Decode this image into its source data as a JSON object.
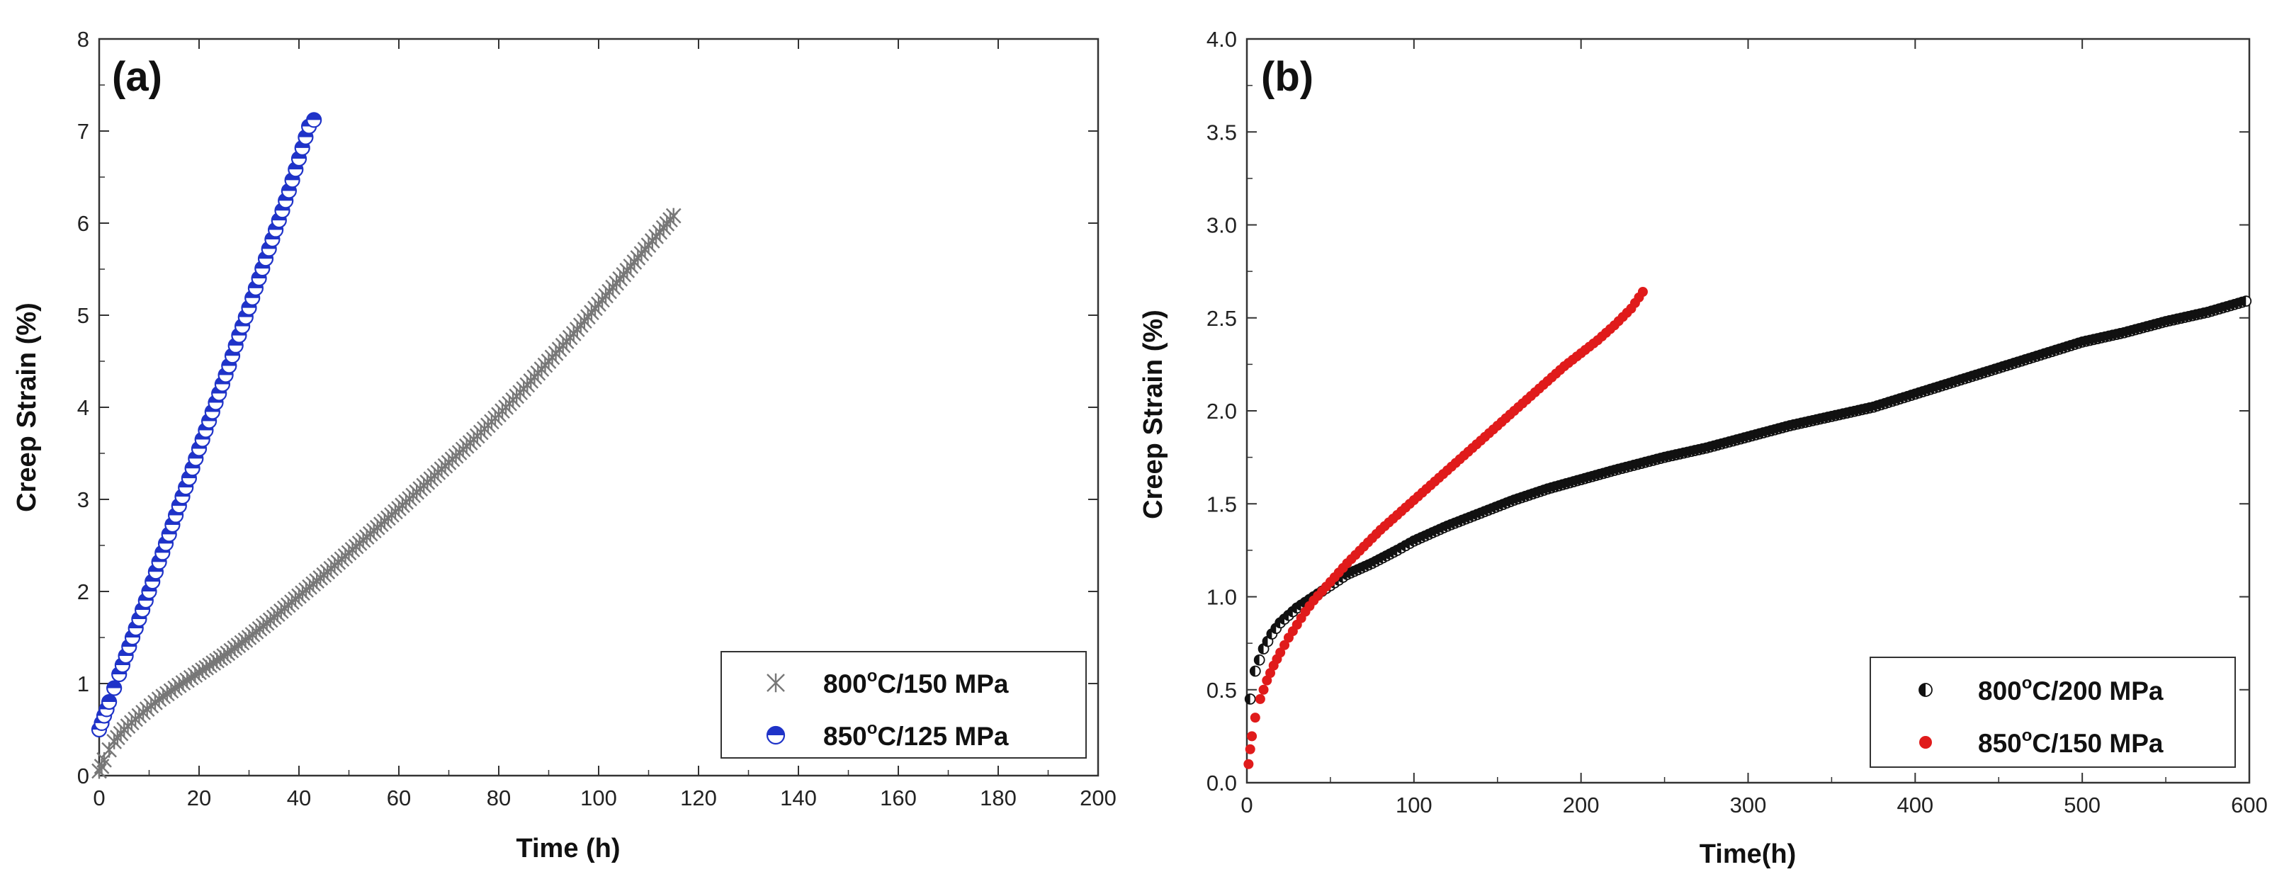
{
  "chart_data": [
    {
      "panel_label": "(a)",
      "type": "scatter",
      "xlabel": "Time (h)",
      "ylabel": "Creep Strain (%)",
      "xlim": [
        0,
        200
      ],
      "ylim": [
        0,
        8
      ],
      "xticks": [
        0,
        20,
        40,
        60,
        80,
        100,
        120,
        140,
        160,
        180,
        200
      ],
      "yticks": [
        0,
        1,
        2,
        3,
        4,
        5,
        6,
        7,
        8
      ],
      "legend_position": "bottom-right",
      "series": [
        {
          "name": "800°C/150 MPa",
          "label_pre": "800",
          "label_sup": "o",
          "label_post": "C/150 MPa",
          "marker": "star",
          "color": "#777777",
          "points": [
            [
              0,
              0.05
            ],
            [
              0.5,
              0.1
            ],
            [
              1,
              0.17
            ],
            [
              2,
              0.28
            ],
            [
              3,
              0.37
            ],
            [
              5,
              0.5
            ],
            [
              8,
              0.65
            ],
            [
              12,
              0.83
            ],
            [
              16,
              0.98
            ],
            [
              20,
              1.12
            ],
            [
              25,
              1.3
            ],
            [
              30,
              1.5
            ],
            [
              35,
              1.72
            ],
            [
              40,
              1.95
            ],
            [
              45,
              2.18
            ],
            [
              50,
              2.42
            ],
            [
              55,
              2.66
            ],
            [
              60,
              2.9
            ],
            [
              65,
              3.15
            ],
            [
              70,
              3.4
            ],
            [
              75,
              3.65
            ],
            [
              80,
              3.92
            ],
            [
              85,
              4.2
            ],
            [
              90,
              4.5
            ],
            [
              95,
              4.8
            ],
            [
              100,
              5.12
            ],
            [
              105,
              5.44
            ],
            [
              110,
              5.76
            ],
            [
              113,
              5.95
            ],
            [
              115,
              6.08
            ]
          ]
        },
        {
          "name": "850°C/125 MPa",
          "label_pre": "850",
          "label_sup": "o",
          "label_post": "C/125 MPa",
          "marker": "half-circle",
          "color": "#1f33c8",
          "points": [
            [
              0,
              0.5
            ],
            [
              0.5,
              0.57
            ],
            [
              1,
              0.65
            ],
            [
              1.5,
              0.72
            ],
            [
              2,
              0.8
            ],
            [
              3,
              0.95
            ],
            [
              4,
              1.1
            ],
            [
              6,
              1.4
            ],
            [
              8,
              1.7
            ],
            [
              10,
              2.0
            ],
            [
              12,
              2.32
            ],
            [
              14,
              2.62
            ],
            [
              16,
              2.93
            ],
            [
              18,
              3.23
            ],
            [
              20,
              3.55
            ],
            [
              22,
              3.85
            ],
            [
              24,
              4.15
            ],
            [
              26,
              4.45
            ],
            [
              28,
              4.78
            ],
            [
              30,
              5.08
            ],
            [
              32,
              5.4
            ],
            [
              34,
              5.72
            ],
            [
              36,
              6.03
            ],
            [
              38,
              6.35
            ],
            [
              40,
              6.7
            ],
            [
              42,
              7.05
            ],
            [
              43,
              7.12
            ]
          ]
        }
      ]
    },
    {
      "panel_label": "(b)",
      "type": "scatter",
      "xlabel": "Time(h)",
      "ylabel": "Creep Strain (%)",
      "xlim": [
        0,
        600
      ],
      "ylim": [
        0,
        4
      ],
      "xticks": [
        0,
        100,
        200,
        300,
        400,
        500,
        600
      ],
      "yticks": [
        "0.0",
        "0.5",
        "1.0",
        "1.5",
        "2.0",
        "2.5",
        "3.0",
        "3.5",
        "4.0"
      ],
      "legend_position": "bottom-right",
      "series": [
        {
          "name": "800°C/200 MPa",
          "label_pre": "800",
          "label_sup": "o",
          "label_post": "C/200 MPa",
          "marker": "half-filled-circle",
          "color": "#111111",
          "points": [
            [
              2,
              0.45
            ],
            [
              5,
              0.6
            ],
            [
              10,
              0.72
            ],
            [
              15,
              0.8
            ],
            [
              20,
              0.86
            ],
            [
              30,
              0.94
            ],
            [
              40,
              1.0
            ],
            [
              50,
              1.06
            ],
            [
              60,
              1.12
            ],
            [
              75,
              1.18
            ],
            [
              90,
              1.25
            ],
            [
              100,
              1.3
            ],
            [
              120,
              1.38
            ],
            [
              140,
              1.45
            ],
            [
              160,
              1.52
            ],
            [
              180,
              1.58
            ],
            [
              200,
              1.63
            ],
            [
              220,
              1.68
            ],
            [
              250,
              1.75
            ],
            [
              275,
              1.8
            ],
            [
              300,
              1.86
            ],
            [
              325,
              1.92
            ],
            [
              350,
              1.97
            ],
            [
              375,
              2.02
            ],
            [
              400,
              2.09
            ],
            [
              425,
              2.16
            ],
            [
              450,
              2.23
            ],
            [
              475,
              2.3
            ],
            [
              500,
              2.37
            ],
            [
              525,
              2.42
            ],
            [
              550,
              2.48
            ],
            [
              575,
              2.53
            ],
            [
              598,
              2.59
            ]
          ]
        },
        {
          "name": "850°C/150 MPa",
          "label_pre": "850",
          "label_sup": "o",
          "label_post": "C/150 MPa",
          "marker": "filled-circle",
          "color": "#e01b1b",
          "points": [
            [
              1,
              0.1
            ],
            [
              2,
              0.18
            ],
            [
              3,
              0.25
            ],
            [
              5,
              0.35
            ],
            [
              8,
              0.45
            ],
            [
              12,
              0.55
            ],
            [
              16,
              0.63
            ],
            [
              20,
              0.7
            ],
            [
              25,
              0.78
            ],
            [
              30,
              0.85
            ],
            [
              35,
              0.92
            ],
            [
              40,
              0.98
            ],
            [
              50,
              1.08
            ],
            [
              60,
              1.18
            ],
            [
              70,
              1.27
            ],
            [
              80,
              1.36
            ],
            [
              90,
              1.44
            ],
            [
              100,
              1.52
            ],
            [
              110,
              1.6
            ],
            [
              120,
              1.68
            ],
            [
              130,
              1.76
            ],
            [
              140,
              1.84
            ],
            [
              150,
              1.92
            ],
            [
              160,
              2.0
            ],
            [
              170,
              2.08
            ],
            [
              180,
              2.16
            ],
            [
              190,
              2.24
            ],
            [
              200,
              2.31
            ],
            [
              210,
              2.38
            ],
            [
              220,
              2.46
            ],
            [
              230,
              2.55
            ],
            [
              237,
              2.64
            ]
          ]
        }
      ]
    }
  ]
}
